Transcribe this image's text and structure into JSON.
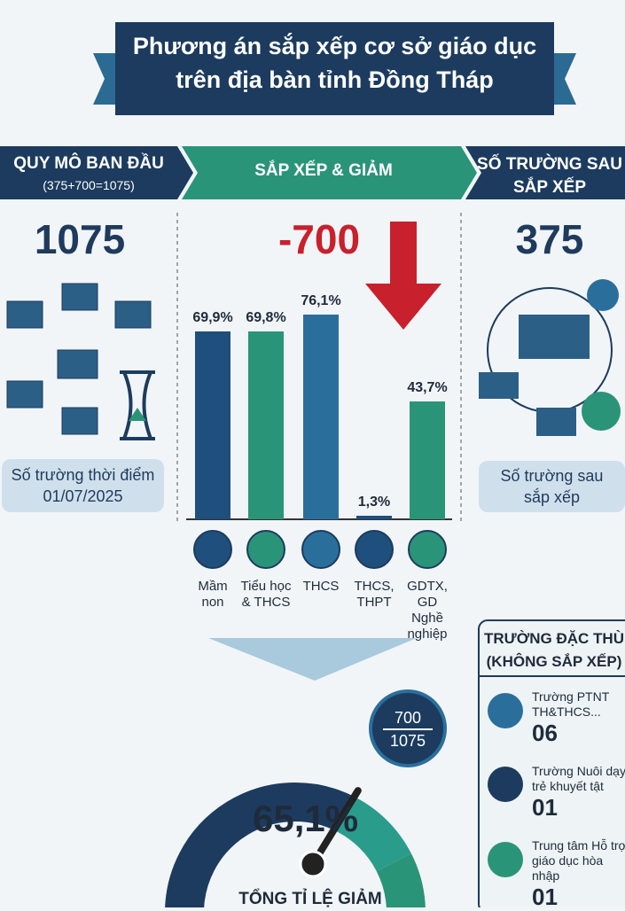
{
  "header": {
    "title_lines": [
      "Phương án sắp xếp cơ sở giáo dục",
      "trên địa bàn tỉnh Đồng Tháp"
    ]
  },
  "left": {
    "heading": "QUY MÔ BAN ĐẦU",
    "formula": "(375+700=1075)",
    "number": 1075,
    "caption_lines": [
      "Số trường thời điểm",
      "01/07/2025"
    ]
  },
  "middle": {
    "heading": "SẮP XẾP & GIẢM",
    "number": -700
  },
  "right": {
    "heading_lines": [
      "SỐ TRƯỜNG SAU",
      "SẮP XẾP"
    ],
    "number": 375,
    "caption_lines": [
      "Số trường sau",
      "sắp xếp"
    ]
  },
  "chart_data": {
    "type": "bar",
    "categories": [
      "Mầm non",
      "Tiểu học & THCS",
      "THCS",
      "THCS, THPT",
      "GDTX, GD Nghề nghiệp"
    ],
    "values": [
      69.9,
      69.8,
      76.1,
      1.3,
      43.7
    ],
    "value_labels": [
      "69,9%",
      "69,8%",
      "76,1%",
      "1,3%",
      "43,7%"
    ],
    "colors": [
      "#1f4f7c",
      "#2a9478",
      "#2a6f9c",
      "#1f4f7c",
      "#2a9478"
    ]
  },
  "gauge": {
    "numerator": 700,
    "denominator": 1075,
    "value": 65.1,
    "value_label": "65,1%",
    "caption": "TỔNG TỈ LỆ GIẢM"
  },
  "special": {
    "heading_lines": [
      "TRƯỜNG ĐẶC THÙ",
      "(KHÔNG SẮP XẾP)"
    ],
    "items": [
      {
        "label_lines": [
          "Trường PTNT",
          "TH&THCS..."
        ],
        "count": "06"
      },
      {
        "label_lines": [
          "Trường Nuôi dạy",
          "trẻ khuyết tật"
        ],
        "count": "01"
      },
      {
        "label_lines": [
          "Trung tâm Hỗ trợ",
          "giáo dục hòa nhập"
        ],
        "count": "01"
      }
    ]
  }
}
